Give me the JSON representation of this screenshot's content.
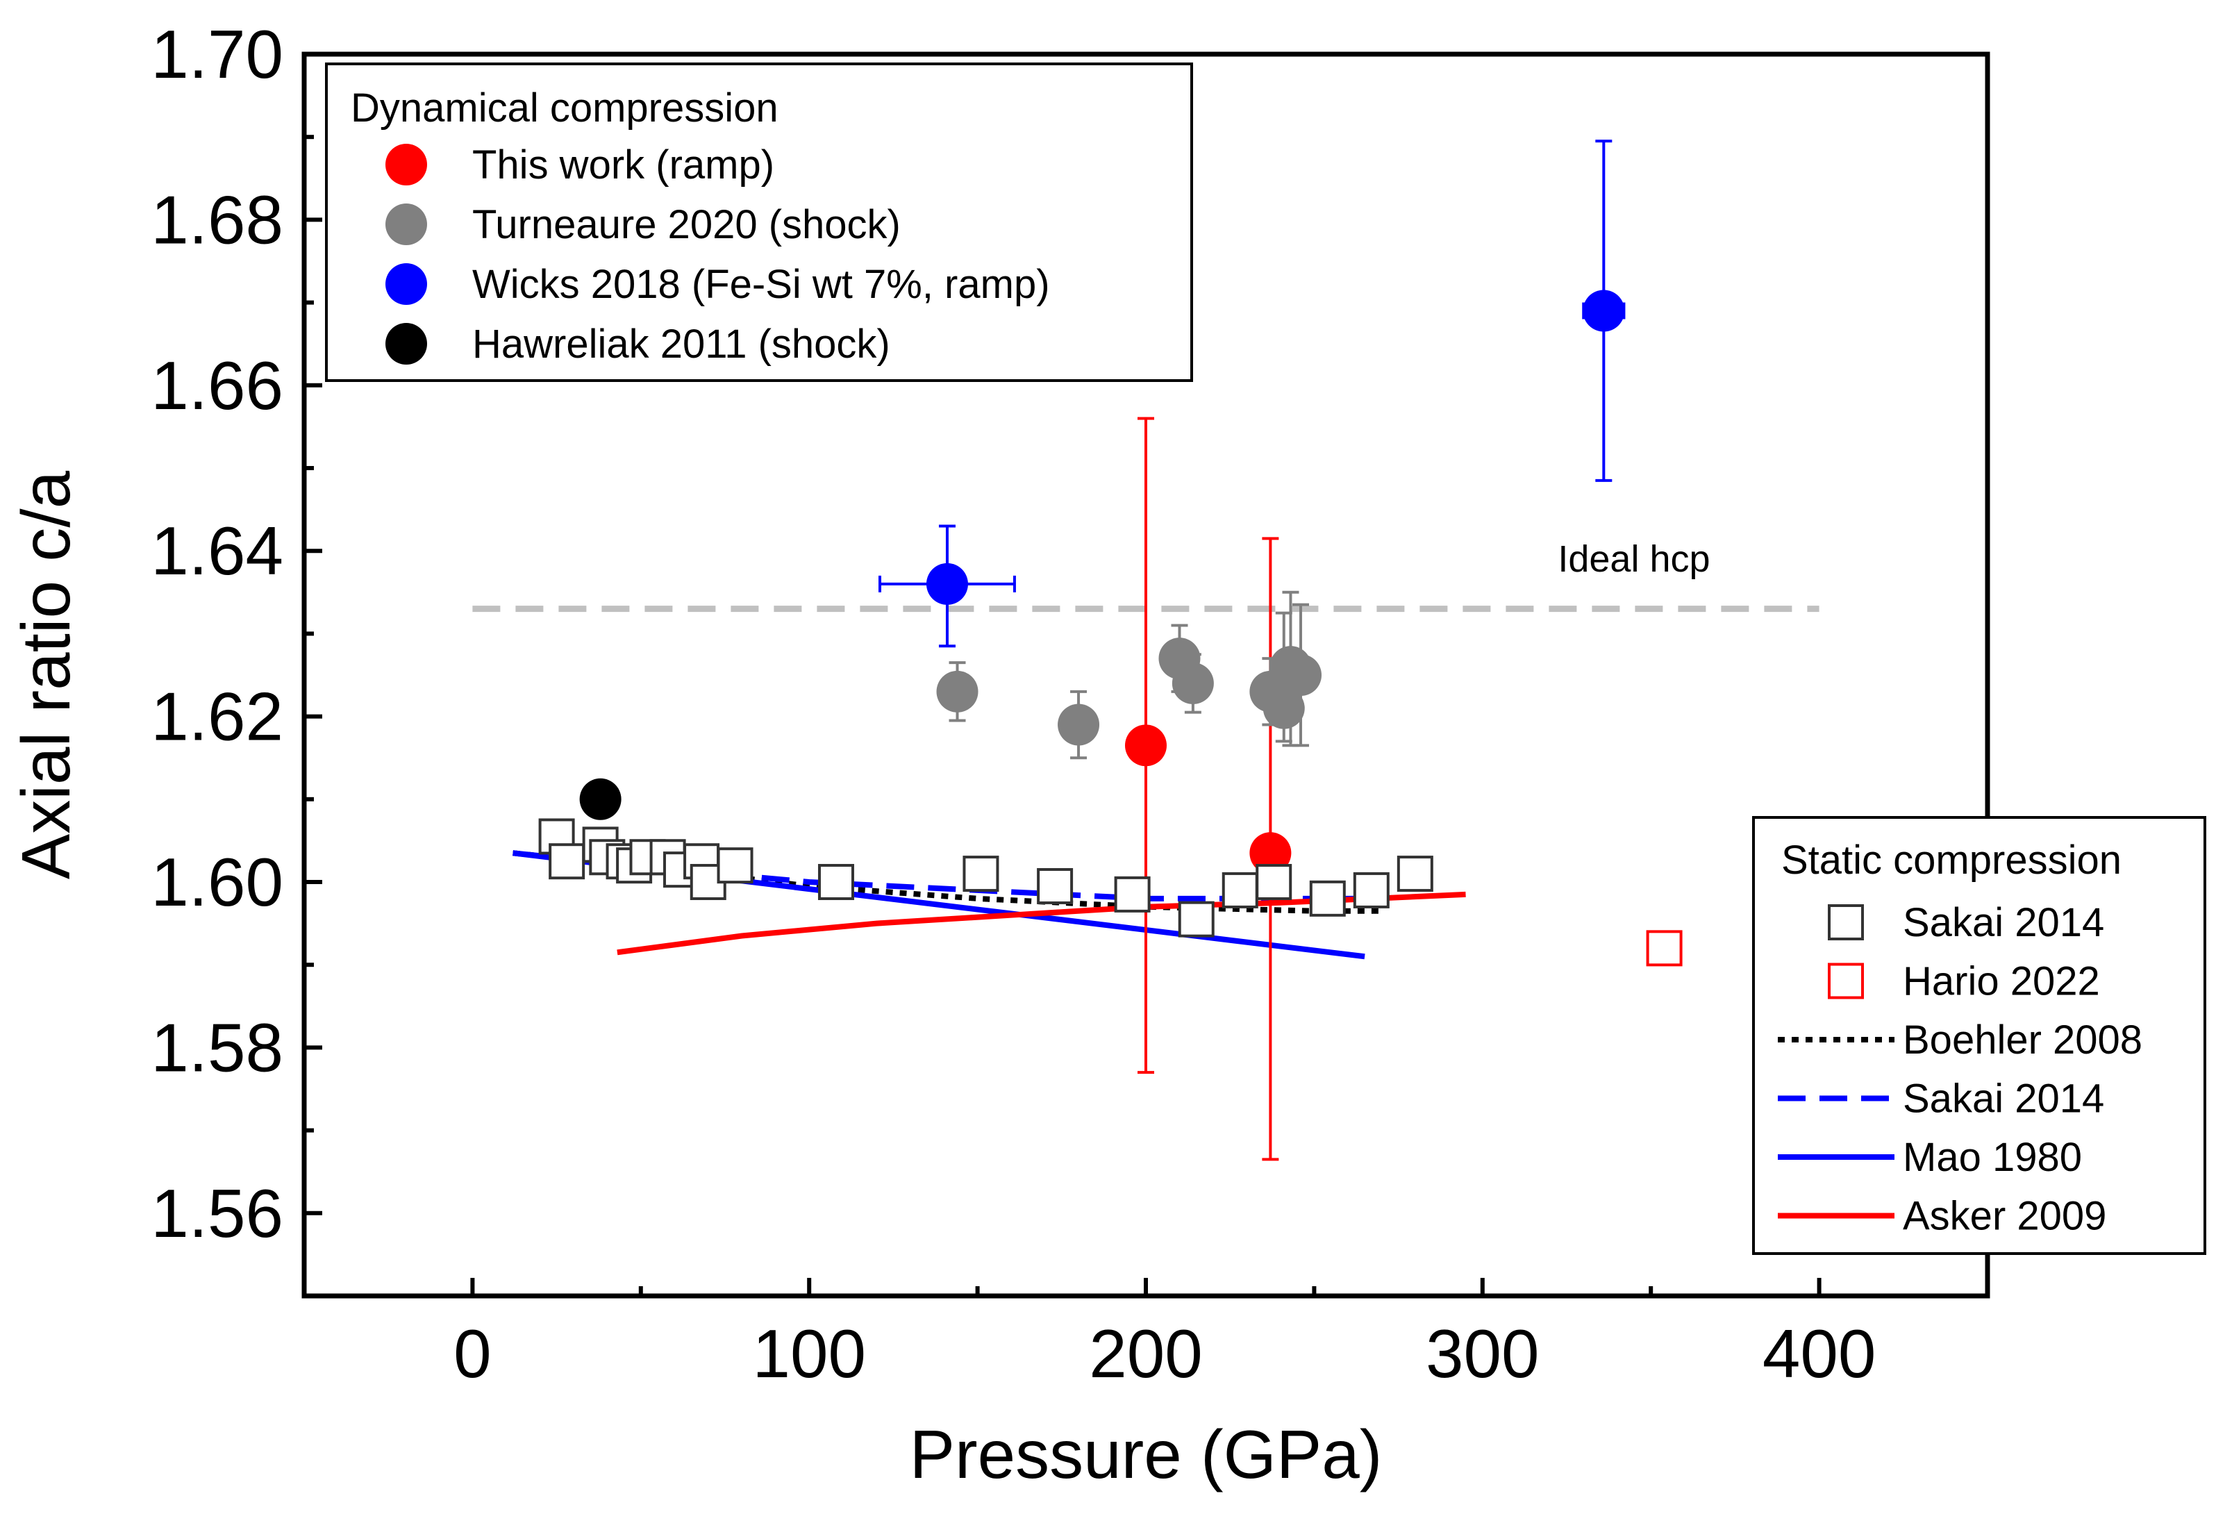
{
  "chart_data": {
    "type": "scatter",
    "xlabel": "Pressure (GPa)",
    "ylabel": "Axial ratio c/a",
    "xlim": [
      -50,
      450
    ],
    "ylim": [
      1.55,
      1.7
    ],
    "xticks": [
      "0",
      "100",
      "200",
      "300",
      "400"
    ],
    "xtick_values": [
      0,
      100,
      200,
      300,
      400
    ],
    "yticks": [
      "1.56",
      "1.58",
      "1.60",
      "1.62",
      "1.64",
      "1.66",
      "1.68",
      "1.70"
    ],
    "ytick_values": [
      1.56,
      1.58,
      1.6,
      1.62,
      1.64,
      1.66,
      1.68,
      1.7
    ],
    "grid": false,
    "colors": {
      "red": "#ff0000",
      "gray": "#808080",
      "blue": "#0000ff",
      "black": "#000000",
      "ideal_line": "#c0c0c0"
    },
    "annotation": {
      "text": "Ideal hcp",
      "x": 345,
      "y": 1.6375
    },
    "ideal_hcp": {
      "value": 1.633,
      "x_range": [
        0,
        400
      ]
    },
    "legend_dynamic": {
      "title": "Dynamical compression",
      "entries": [
        "This work (ramp)",
        "Turneaure 2020 (shock)",
        "Wicks 2018 (Fe-Si wt 7%, ramp)",
        "Hawreliak 2011 (shock)"
      ],
      "position": "top-left"
    },
    "legend_static": {
      "title": "Static compression",
      "entries": [
        "Sakai 2014",
        "Hario 2022",
        "Boehler 2008",
        "Sakai 2014",
        "Mao 1980",
        "Asker 2009"
      ],
      "position": "bottom-right"
    },
    "series": [
      {
        "name": "This work (ramp)",
        "marker": "circle-filled",
        "color": "#ff0000",
        "points": [
          {
            "x": 200,
            "y": 1.6165,
            "yerr": [
              1.577,
              1.656
            ]
          },
          {
            "x": 237,
            "y": 1.6035,
            "yerr": [
              1.5665,
              1.6415
            ]
          }
        ]
      },
      {
        "name": "Turneaure 2020 (shock)",
        "marker": "circle-filled",
        "color": "#808080",
        "points": [
          {
            "x": 144,
            "y": 1.623,
            "yerr": [
              1.6195,
              1.6265
            ]
          },
          {
            "x": 180,
            "y": 1.619,
            "yerr": [
              1.615,
              1.623
            ]
          },
          {
            "x": 210,
            "y": 1.627,
            "yerr": [
              1.623,
              1.631
            ]
          },
          {
            "x": 214,
            "y": 1.624,
            "yerr": [
              1.6205,
              1.6275
            ]
          },
          {
            "x": 237,
            "y": 1.623,
            "yerr": [
              1.619,
              1.627
            ]
          },
          {
            "x": 241,
            "y": 1.621,
            "yerr": [
              1.617,
              1.6325
            ]
          },
          {
            "x": 243,
            "y": 1.626,
            "yerr": [
              1.6165,
              1.635
            ]
          },
          {
            "x": 246,
            "y": 1.625,
            "yerr": [
              1.6165,
              1.6335
            ]
          }
        ]
      },
      {
        "name": "Wicks 2018 (Fe-Si wt 7%, ramp)",
        "marker": "circle-filled",
        "color": "#0000ff",
        "points": [
          {
            "x": 141,
            "y": 1.636,
            "yerr": [
              1.6285,
              1.643
            ],
            "xerr": [
              121,
              161
            ]
          },
          {
            "x": 336,
            "y": 1.669,
            "yerr": [
              1.6485,
              1.6895
            ],
            "xerr": [
              330,
              342
            ]
          }
        ]
      },
      {
        "name": "Hawreliak 2011 (shock)",
        "marker": "circle-filled",
        "color": "#000000",
        "points": [
          {
            "x": 38,
            "y": 1.61
          }
        ]
      },
      {
        "name": "Sakai 2014",
        "marker": "square-open",
        "color": "#333333",
        "points": [
          {
            "x": 25,
            "y": 1.6055
          },
          {
            "x": 28,
            "y": 1.6025
          },
          {
            "x": 38,
            "y": 1.6045
          },
          {
            "x": 40,
            "y": 1.603
          },
          {
            "x": 45,
            "y": 1.6025
          },
          {
            "x": 48,
            "y": 1.602
          },
          {
            "x": 52,
            "y": 1.603
          },
          {
            "x": 58,
            "y": 1.603
          },
          {
            "x": 62,
            "y": 1.6015
          },
          {
            "x": 68,
            "y": 1.6025
          },
          {
            "x": 70,
            "y": 1.6
          },
          {
            "x": 78,
            "y": 1.602
          },
          {
            "x": 108,
            "y": 1.6
          },
          {
            "x": 151,
            "y": 1.601
          },
          {
            "x": 173,
            "y": 1.5995
          },
          {
            "x": 196,
            "y": 1.5985
          },
          {
            "x": 215,
            "y": 1.5955
          },
          {
            "x": 228,
            "y": 1.599
          },
          {
            "x": 238,
            "y": 1.6
          },
          {
            "x": 254,
            "y": 1.598
          },
          {
            "x": 267,
            "y": 1.599
          },
          {
            "x": 280,
            "y": 1.601
          }
        ]
      },
      {
        "name": "Hario 2022",
        "marker": "square-open",
        "color": "#ff0000",
        "points": [
          {
            "x": 354,
            "y": 1.592
          }
        ]
      },
      {
        "name": "Boehler 2008",
        "line": "dotted",
        "color": "#000000",
        "x": [
          12,
          60,
          100,
          150,
          200,
          250,
          270
        ],
        "y": [
          1.6035,
          1.6015,
          1.5995,
          1.598,
          1.597,
          1.5965,
          1.5965
        ]
      },
      {
        "name": "Sakai 2014",
        "line": "dashed",
        "color": "#0000ff",
        "x": [
          12,
          60,
          100,
          150,
          200,
          250,
          270
        ],
        "y": [
          1.6035,
          1.6015,
          1.6,
          1.599,
          1.598,
          1.598,
          1.598
        ]
      },
      {
        "name": "Mao 1980",
        "line": "solid",
        "color": "#0000ff",
        "x": [
          12,
          265
        ],
        "y": [
          1.6035,
          1.591
        ]
      },
      {
        "name": "Asker 2009",
        "line": "solid",
        "color": "#ff0000",
        "x": [
          43,
          80,
          120,
          160,
          200,
          240,
          295
        ],
        "y": [
          1.5915,
          1.5935,
          1.595,
          1.596,
          1.597,
          1.5975,
          1.5985
        ]
      }
    ]
  }
}
